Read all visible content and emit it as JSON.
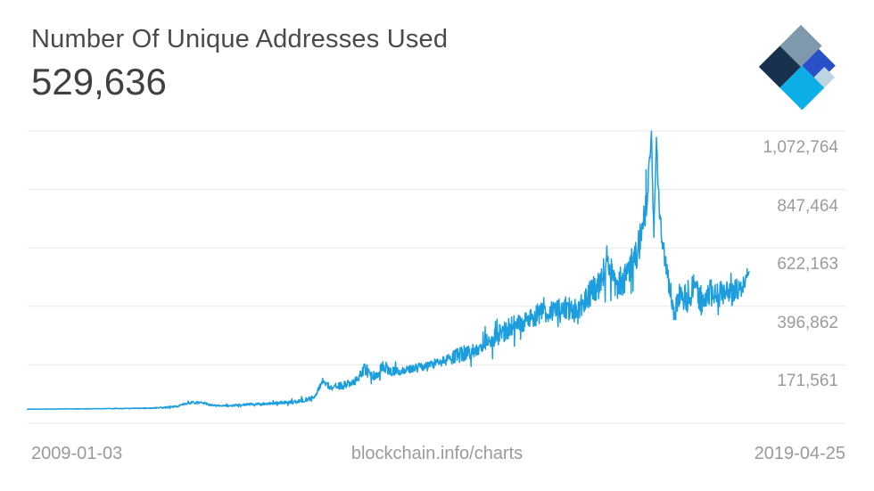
{
  "header": {
    "title": "Number Of Unique Addresses Used",
    "value": "529,636"
  },
  "logo": {
    "name": "blockchain-logo",
    "colors": {
      "slate": "#7e99ac",
      "navy": "#17314f",
      "cyan": "#0baee6",
      "royal": "#2a50c8",
      "light": "#bdd4e3"
    }
  },
  "chart_data": {
    "type": "line",
    "title": "Number Of Unique Addresses Used",
    "current_value": 529636,
    "x_start_label": "2009-01-03",
    "x_end_label": "2019-04-25",
    "watermark": "blockchain.info/charts",
    "y_ticks": [
      "1,072,764",
      "847,464",
      "622,163",
      "396,862",
      "171,561"
    ],
    "y_tick_values": [
      1072764,
      847464,
      622163,
      396862,
      171561
    ],
    "y_axis_max": 1072764,
    "y_tick_interval": 225301,
    "grid": true,
    "legend": false,
    "line_color": "#1b9dde",
    "grid_color": "#e8e8e8",
    "label_color": "#9b9b9b",
    "anchors": [
      [
        0.0,
        600,
        500
      ],
      [
        0.036,
        1000,
        600
      ],
      [
        0.085,
        2000,
        900
      ],
      [
        0.135,
        3200,
        1300
      ],
      [
        0.172,
        4800,
        1800
      ],
      [
        0.19,
        7000,
        2600
      ],
      [
        0.209,
        13000,
        3800
      ],
      [
        0.227,
        26000,
        5000
      ],
      [
        0.244,
        24000,
        5000
      ],
      [
        0.258,
        14500,
        3800
      ],
      [
        0.281,
        13500,
        3800
      ],
      [
        0.298,
        18000,
        4500
      ],
      [
        0.314,
        20000,
        5000
      ],
      [
        0.333,
        22000,
        5000
      ],
      [
        0.357,
        26000,
        6000
      ],
      [
        0.376,
        31000,
        7000
      ],
      [
        0.397,
        45000,
        8500
      ],
      [
        0.409,
        108000,
        14000
      ],
      [
        0.419,
        85000,
        12000
      ],
      [
        0.438,
        92000,
        14000
      ],
      [
        0.454,
        110000,
        16000
      ],
      [
        0.466,
        155000,
        22000
      ],
      [
        0.475,
        135000,
        18000
      ],
      [
        0.483,
        128000,
        18000
      ],
      [
        0.493,
        170000,
        24000
      ],
      [
        0.503,
        145000,
        18000
      ],
      [
        0.518,
        148000,
        16000
      ],
      [
        0.533,
        155000,
        16000
      ],
      [
        0.555,
        170000,
        18000
      ],
      [
        0.58,
        188000,
        20000
      ],
      [
        0.602,
        215000,
        32000
      ],
      [
        0.617,
        225000,
        28000
      ],
      [
        0.635,
        255000,
        34000
      ],
      [
        0.654,
        290000,
        40000
      ],
      [
        0.673,
        320000,
        40000
      ],
      [
        0.691,
        345000,
        40000
      ],
      [
        0.71,
        370000,
        42000
      ],
      [
        0.728,
        380000,
        45000
      ],
      [
        0.747,
        390000,
        45000
      ],
      [
        0.765,
        380000,
        55000
      ],
      [
        0.78,
        450000,
        55000
      ],
      [
        0.792,
        480000,
        55000
      ],
      [
        0.805,
        590000,
        70000
      ],
      [
        0.815,
        470000,
        50000
      ],
      [
        0.827,
        500000,
        55000
      ],
      [
        0.839,
        560000,
        60000
      ],
      [
        0.849,
        650000,
        65000
      ],
      [
        0.857,
        775000,
        70000
      ],
      [
        0.861,
        900000,
        50000
      ],
      [
        0.8645,
        1070000,
        6000
      ],
      [
        0.868,
        650000,
        50000
      ],
      [
        0.8715,
        1045000,
        9000
      ],
      [
        0.875,
        790000,
        50000
      ],
      [
        0.881,
        620000,
        45000
      ],
      [
        0.889,
        480000,
        40000
      ],
      [
        0.896,
        360000,
        35000
      ],
      [
        0.903,
        450000,
        60000
      ],
      [
        0.913,
        430000,
        60000
      ],
      [
        0.923,
        460000,
        60000
      ],
      [
        0.933,
        420000,
        60000
      ],
      [
        0.943,
        450000,
        60000
      ],
      [
        0.953,
        440000,
        60000
      ],
      [
        0.963,
        460000,
        55000
      ],
      [
        0.973,
        440000,
        55000
      ],
      [
        0.983,
        470000,
        50000
      ],
      [
        0.991,
        480000,
        40000
      ],
      [
        0.997,
        512000,
        15000
      ],
      [
        1.0,
        529636,
        0
      ]
    ]
  }
}
